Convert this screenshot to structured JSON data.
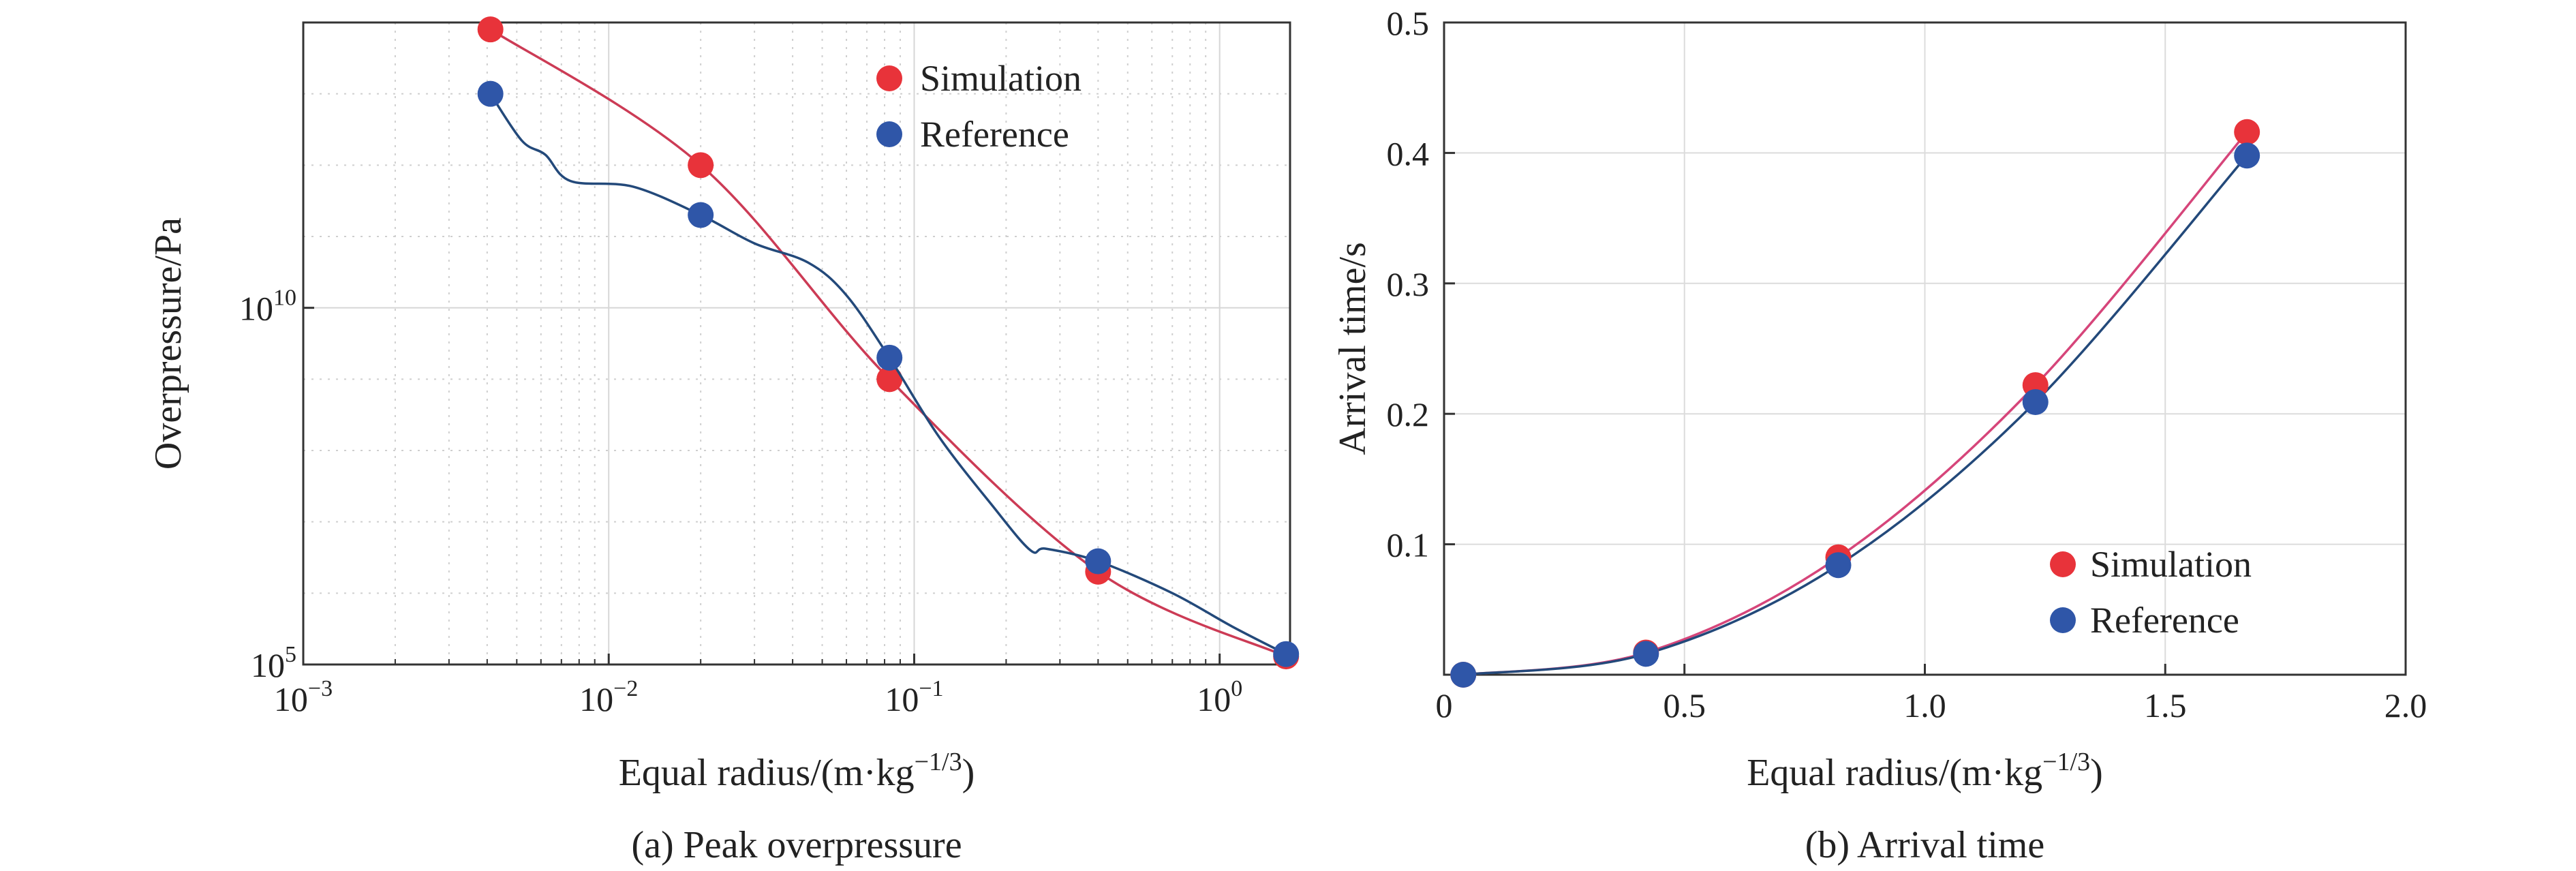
{
  "chart_data": [
    {
      "type": "line",
      "caption": "(a) Peak overpressure",
      "xlabel": "Equal radius/(m·kg",
      "xlabel_sup": "−1/3",
      "xlabel_end": ")",
      "ylabel": "Overpressure/Pa",
      "xscale": "log",
      "yscale": "log",
      "xlim": [
        0.001,
        1.7
      ],
      "ylim": [
        100000,
        100000000000000.0
      ],
      "grid": true,
      "legend_position": "top-right",
      "x_ticks": [
        {
          "base": "10",
          "exp": "−3",
          "value": 0.001
        },
        {
          "base": "10",
          "exp": "−2",
          "value": 0.01
        },
        {
          "base": "10",
          "exp": "−1",
          "value": 0.1
        },
        {
          "base": "10",
          "exp": "0",
          "value": 1
        }
      ],
      "y_ticks": [
        {
          "base": "10",
          "exp": "5",
          "value": 100000
        },
        {
          "base": "10",
          "exp": "10",
          "value": 10000000000
        }
      ],
      "series": [
        {
          "name": "Simulation",
          "color": "#e8333a",
          "line_color": "#cc3b55",
          "x": [
            0.0041,
            0.02,
            0.083,
            0.4,
            1.65
          ],
          "y": [
            80000000000000.0,
            1000000000000.0,
            1000000000.0,
            2000000.0,
            130000.0
          ],
          "curve_x": [
            0.0041,
            0.02,
            0.083,
            0.4,
            1.65
          ],
          "curve_y": [
            80000000000000.0,
            1000000000000.0,
            1000000000.0,
            2000000.0,
            130000.0
          ]
        },
        {
          "name": "Reference",
          "color": "#2f56a8",
          "line_color": "#23497a",
          "x": [
            0.0041,
            0.02,
            0.083,
            0.4,
            1.65
          ],
          "y": [
            10000000000000.0,
            200000000000.0,
            2000000000.0,
            2800000.0,
            140000.0
          ],
          "curve_x": [
            0.0041,
            0.0052,
            0.0062,
            0.0075,
            0.012,
            0.02,
            0.03,
            0.045,
            0.06,
            0.083,
            0.12,
            0.18,
            0.24,
            0.27,
            0.4,
            0.7,
            1.1,
            1.65
          ],
          "curve_y": [
            10000000000000.0,
            2200000000000.0,
            1400000000000.0,
            600000000000.0,
            500000000000.0,
            200000000000.0,
            80000000000.0,
            43000000000.0,
            15000000000.0,
            2000000000.0,
            160000000.0,
            17000000.0,
            4000000.0,
            4200000.0,
            2800000.0,
            1000000.0,
            340000.0,
            140000.0
          ]
        }
      ]
    },
    {
      "type": "line",
      "caption": "(b) Arrival time",
      "xlabel": "Equal radius/(m·kg",
      "xlabel_sup": "−1/3",
      "xlabel_end": ")",
      "ylabel": "Arrival time/s",
      "xlim": [
        0,
        2.0
      ],
      "ylim": [
        0,
        0.5
      ],
      "grid": true,
      "legend_position": "bottom-right",
      "x_ticks": [
        "0",
        "0.5",
        "1.0",
        "1.5",
        "2.0"
      ],
      "x_tick_values": [
        0,
        0.5,
        1.0,
        1.5,
        2.0
      ],
      "y_ticks": [
        "0.1",
        "0.2",
        "0.3",
        "0.4",
        "0.5"
      ],
      "y_tick_values": [
        0.1,
        0.2,
        0.3,
        0.4,
        0.5
      ],
      "series": [
        {
          "name": "Simulation",
          "color": "#e8333a",
          "line_color": "#d6457a",
          "x": [
            0.04,
            0.42,
            0.82,
            1.23,
            1.67
          ],
          "y": [
            0.0,
            0.017,
            0.09,
            0.222,
            0.416
          ]
        },
        {
          "name": "Reference",
          "color": "#2f56a8",
          "line_color": "#23497a",
          "x": [
            0.04,
            0.42,
            0.82,
            1.23,
            1.67
          ],
          "y": [
            0.0,
            0.016,
            0.084,
            0.209,
            0.398
          ]
        }
      ]
    }
  ]
}
